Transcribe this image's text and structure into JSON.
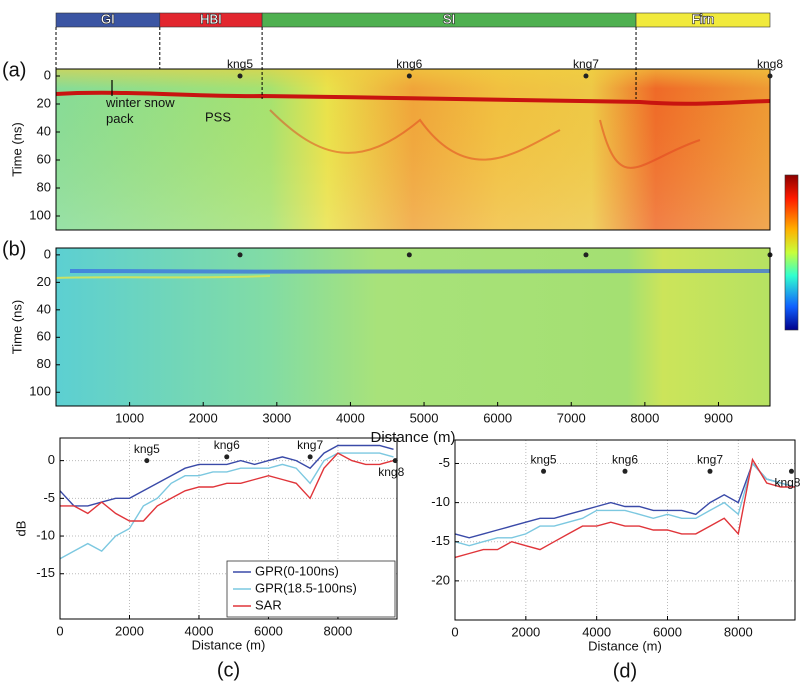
{
  "chart_data": [
    {
      "type": "radargram",
      "label": "(a)",
      "ylabel": "Time (ns)",
      "xlim": [
        0,
        9700
      ],
      "ylim": [
        110,
        -5
      ],
      "yticks": [
        0,
        20,
        40,
        60,
        80,
        100
      ],
      "zones": [
        {
          "name": "GI",
          "color": "#3b55a3",
          "start": 0,
          "end": 1410
        },
        {
          "name": "HBI",
          "color": "#e2262e",
          "start": 1410,
          "end": 2800
        },
        {
          "name": "SI",
          "color": "#4fb050",
          "start": 2800,
          "end": 7880
        },
        {
          "name": "Firn",
          "color": "#f1ea3c",
          "start": 7880,
          "end": 9700
        }
      ],
      "markers": {
        "names": [
          "kng5",
          "kng6",
          "kng7",
          "kng8"
        ],
        "x": [
          2500,
          4800,
          7200,
          9700
        ]
      },
      "annotations": [
        "winter snow pack",
        "PSS"
      ]
    },
    {
      "type": "radargram",
      "label": "(b)",
      "ylabel": "Time (ns)",
      "xlabel": "Distance (m)",
      "xlim": [
        0,
        9700
      ],
      "ylim": [
        110,
        -5
      ],
      "yticks": [
        0,
        20,
        40,
        60,
        80,
        100
      ],
      "xticks": [
        1000,
        2000,
        3000,
        4000,
        5000,
        6000,
        7000,
        8000,
        9000
      ]
    },
    {
      "type": "line",
      "label": "(c)",
      "ylabel": "dB",
      "xlabel": "Distance (m)",
      "xlim": [
        0,
        9700
      ],
      "ylim": [
        -21,
        3
      ],
      "xticks": [
        0,
        2000,
        4000,
        6000,
        8000
      ],
      "yticks": [
        0,
        -5,
        -10,
        -15
      ],
      "grid": true,
      "legend": "lower right",
      "x": [
        0,
        400,
        800,
        1200,
        1600,
        2000,
        2400,
        2800,
        3200,
        3600,
        4000,
        4400,
        4800,
        5200,
        5600,
        6000,
        6400,
        6800,
        7200,
        7600,
        8000,
        8400,
        8800,
        9200,
        9600
      ],
      "series": [
        {
          "name": "GPR(0-100ns)",
          "color": "#3a4aa8",
          "values": [
            -4,
            -6,
            -6,
            -5.5,
            -5,
            -5,
            -4,
            -3,
            -2,
            -1,
            -0.5,
            -0.5,
            -0.5,
            0,
            -0.5,
            0,
            0.5,
            0,
            -1,
            1,
            2,
            2,
            2,
            2,
            1.5
          ]
        },
        {
          "name": "GPR(18.5-100ns)",
          "color": "#7cc8e0",
          "values": [
            -13,
            -12,
            -11,
            -12,
            -10,
            -9,
            -6,
            -5,
            -3,
            -2,
            -2,
            -1.5,
            -1.5,
            -1,
            -1,
            -1,
            -0.5,
            -1,
            -3,
            0,
            1,
            1,
            1,
            1,
            0.5
          ]
        },
        {
          "name": "SAR",
          "color": "#e0353a",
          "values": [
            -6,
            -6,
            -7,
            -5.5,
            -7,
            -8,
            -8,
            -6,
            -5,
            -4,
            -3.5,
            -3.5,
            -3,
            -3,
            -2.5,
            -2,
            -2.5,
            -3,
            -5,
            -1,
            1,
            0,
            -0.5,
            -0.5,
            0
          ]
        }
      ],
      "markers": {
        "names": [
          "kng5",
          "kng6",
          "kng7",
          "kng8"
        ],
        "x": [
          2500,
          4800,
          7200,
          9650
        ],
        "y": [
          0,
          0.5,
          0.5,
          0
        ]
      }
    },
    {
      "type": "line",
      "label": "(d)",
      "xlabel": "Distance (m)",
      "xlim": [
        0,
        9600
      ],
      "ylim": [
        -25,
        -2
      ],
      "xticks": [
        0,
        2000,
        4000,
        6000,
        8000
      ],
      "yticks": [
        -5,
        -10,
        -15,
        -20
      ],
      "grid": true,
      "x": [
        0,
        400,
        800,
        1200,
        1600,
        2000,
        2400,
        2800,
        3200,
        3600,
        4000,
        4400,
        4800,
        5200,
        5600,
        6000,
        6400,
        6800,
        7200,
        7600,
        8000,
        8400,
        8800,
        9200,
        9600
      ],
      "series": [
        {
          "color": "#3a4aa8",
          "values": [
            -14,
            -14.5,
            -14,
            -13.5,
            -13,
            -12.5,
            -12,
            -12,
            -11.5,
            -11,
            -10.5,
            -10,
            -10.5,
            -10.5,
            -11,
            -11,
            -11,
            -11.5,
            -10,
            -9,
            -10,
            -5,
            -7,
            -7.5,
            -8
          ]
        },
        {
          "color": "#7cc8e0",
          "values": [
            -15,
            -15.5,
            -15,
            -14.5,
            -14.5,
            -14,
            -13,
            -13,
            -12.5,
            -12,
            -11,
            -11,
            -11,
            -11.5,
            -12,
            -11.5,
            -12,
            -12,
            -11,
            -10,
            -11.5,
            -5,
            -7,
            -7.5,
            -8
          ]
        },
        {
          "color": "#e0353a",
          "values": [
            -17,
            -16.5,
            -16,
            -16,
            -15,
            -15.5,
            -16,
            -15,
            -14,
            -13,
            -13,
            -12.5,
            -13,
            -13,
            -13.5,
            -13.5,
            -14,
            -14,
            -13,
            -12,
            -14,
            -4.5,
            -7.5,
            -8,
            -8
          ]
        }
      ],
      "markers": {
        "names": [
          "kng5",
          "kng6",
          "kng7",
          "kng8"
        ],
        "x": [
          2500,
          4800,
          7200,
          9500
        ],
        "y": [
          -6,
          -6,
          -6,
          -6
        ]
      }
    }
  ]
}
